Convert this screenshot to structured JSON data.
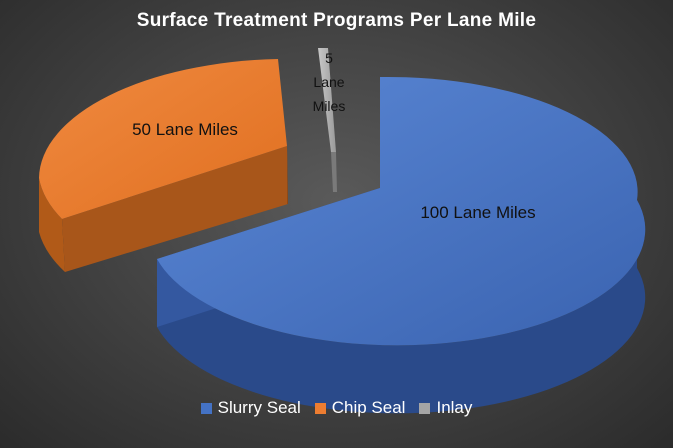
{
  "chart_data": {
    "type": "pie",
    "title": "Surface Treatment Programs Per Lane Mile",
    "slices": [
      {
        "name": "Slurry Seal",
        "value": 100,
        "label": "100 Lane Miles",
        "color": "#4472C4"
      },
      {
        "name": "Chip Seal",
        "value": 50,
        "label": "50 Lane Miles",
        "color": "#ED7D31"
      },
      {
        "name": "Inlay",
        "value": 5,
        "label_lines": [
          "5",
          "Lane",
          "Miles"
        ],
        "color": "#A5A5A5"
      }
    ],
    "exploded": true,
    "three_d": true,
    "legend_position": "bottom"
  }
}
